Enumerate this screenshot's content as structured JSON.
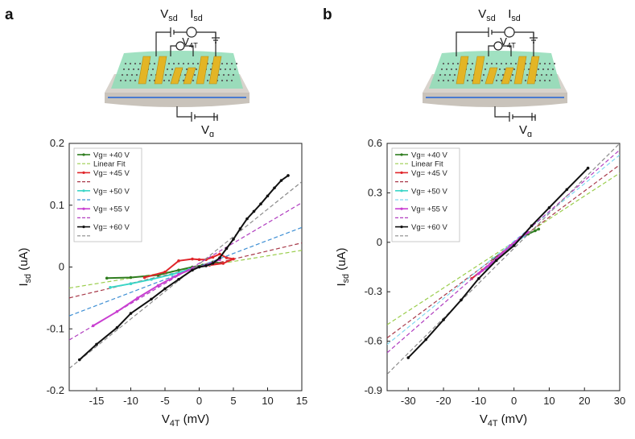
{
  "panels": [
    {
      "letter": "a",
      "schematic": {
        "source_v": "V",
        "source_v_sub": "sd",
        "source_i": "I",
        "source_i_sub": "sd",
        "probe_v": "V",
        "probe_v_sub": "4T",
        "gate_v": "V",
        "gate_v_sub": "g"
      }
    },
    {
      "letter": "b",
      "schematic": {
        "source_v": "V",
        "source_v_sub": "sd",
        "source_i": "I",
        "source_i_sub": "sd",
        "probe_v": "V",
        "probe_v_sub": "4T",
        "gate_v": "V",
        "gate_v_sub": "g"
      }
    }
  ],
  "chart_data": [
    {
      "type": "line",
      "xlabel_main": "V",
      "xlabel_sub": "4T",
      "xlabel_unit": " (mV)",
      "ylabel_main": "I",
      "ylabel_sub": "sd",
      "ylabel_unit": " (uA)",
      "xlim": [
        -19,
        15
      ],
      "ylim": [
        -0.2,
        0.2
      ],
      "xticks": [
        -15,
        -10,
        -5,
        0,
        5,
        10,
        15
      ],
      "yticks": [
        -0.2,
        -0.1,
        0,
        0.1,
        0.2
      ],
      "ytick_labels": [
        "-0.2",
        "-0.1",
        "0",
        "0.1",
        "0.2"
      ],
      "legend": [
        "Vg= +40 V",
        "Linear Fit",
        "Vg= +45 V",
        "",
        "Vg= +50 V",
        "",
        "Vg= +55 V",
        "",
        "Vg= +60 V",
        ""
      ],
      "legend_position": "top-left",
      "series": [
        {
          "name": "Vg= +40 V",
          "color": "#2f7d1f",
          "points": [
            [
              -13.5,
              -0.018
            ],
            [
              -10,
              -0.017
            ],
            [
              -6,
              -0.013
            ],
            [
              -3,
              -0.005
            ],
            [
              -1,
              0.0
            ],
            [
              0.5,
              0.003
            ],
            [
              2,
              0.008
            ],
            [
              3.5,
              0.006
            ]
          ],
          "fit_color": "#9acd4c",
          "fit": [
            [
              -19,
              -0.034
            ],
            [
              15,
              0.027
            ]
          ]
        },
        {
          "name": "Vg= +45 V",
          "color": "#e0262b",
          "points": [
            [
              -8,
              -0.017
            ],
            [
              -5,
              -0.008
            ],
            [
              -3,
              0.01
            ],
            [
              -1,
              0.013
            ],
            [
              0,
              0.012
            ],
            [
              1,
              0.012
            ],
            [
              2,
              0.016
            ],
            [
              3,
              0.021
            ],
            [
              4,
              0.015
            ],
            [
              5,
              0.013
            ],
            [
              3.5,
              0.006
            ],
            [
              1.5,
              0.003
            ]
          ],
          "fit_color": "#a83a4a",
          "fit": [
            [
              -19,
              -0.05
            ],
            [
              15,
              0.039
            ]
          ]
        },
        {
          "name": "Vg= +50 V",
          "color": "#3ad6c7",
          "points": [
            [
              -13,
              -0.033
            ],
            [
              -10,
              -0.027
            ],
            [
              -7,
              -0.02
            ],
            [
              -4,
              -0.012
            ],
            [
              -1.5,
              -0.004
            ],
            [
              0,
              0.0
            ],
            [
              1.5,
              0.004
            ]
          ],
          "fit_color": "#3e8fd4",
          "fit": [
            [
              -19,
              -0.079
            ],
            [
              15,
              0.064
            ]
          ]
        },
        {
          "name": "Vg= +55 V",
          "color": "#c93ed1",
          "points": [
            [
              -15.5,
              -0.095
            ],
            [
              -12,
              -0.072
            ],
            [
              -9,
              -0.05
            ],
            [
              -6,
              -0.03
            ],
            [
              -3,
              -0.012
            ],
            [
              -1,
              -0.003
            ],
            [
              1,
              0.003
            ],
            [
              3,
              0.012
            ]
          ],
          "fit_color": "#b13fc0",
          "fit": [
            [
              -19,
              -0.118
            ],
            [
              15,
              0.104
            ]
          ]
        },
        {
          "name": "Vg= +60 V",
          "color": "#111111",
          "points": [
            [
              -17.5,
              -0.15
            ],
            [
              -15,
              -0.125
            ],
            [
              -12,
              -0.098
            ],
            [
              -10,
              -0.075
            ],
            [
              -7,
              -0.052
            ],
            [
              -5,
              -0.035
            ],
            [
              -3,
              -0.02
            ],
            [
              -1,
              -0.005
            ],
            [
              0,
              0.0
            ],
            [
              1,
              0.002
            ],
            [
              2,
              0.006
            ],
            [
              3,
              0.015
            ],
            [
              4,
              0.03
            ],
            [
              5,
              0.045
            ],
            [
              6,
              0.062
            ],
            [
              7,
              0.078
            ],
            [
              8,
              0.09
            ],
            [
              9,
              0.102
            ],
            [
              10,
              0.115
            ],
            [
              11,
              0.128
            ],
            [
              12,
              0.14
            ],
            [
              13,
              0.148
            ]
          ],
          "fit_color": "#8a8a8a",
          "fit": [
            [
              -19,
              -0.164
            ],
            [
              15,
              0.138
            ]
          ]
        }
      ]
    },
    {
      "type": "line",
      "xlabel_main": "V",
      "xlabel_sub": "4T",
      "xlabel_unit": " (mV)",
      "ylabel_main": "I",
      "ylabel_sub": "sd",
      "ylabel_unit": " (uA)",
      "xlim": [
        -36,
        30
      ],
      "ylim": [
        -0.9,
        0.6
      ],
      "xticks": [
        -30,
        -20,
        -10,
        0,
        10,
        20,
        30
      ],
      "yticks": [
        -0.9,
        -0.6,
        -0.3,
        0,
        0.3,
        0.6
      ],
      "ytick_labels": [
        "-0.9",
        "-0.6",
        "-0.3",
        "0",
        "0.3",
        "0.6"
      ],
      "legend": [
        "Vg= +40 V",
        "Linear Fit",
        "Vg= +45 V",
        "",
        "Vg= +50 V",
        "",
        "Vg= +55 V",
        "",
        "Vg= +60 V",
        ""
      ],
      "legend_position": "top-left",
      "series": [
        {
          "name": "Vg= +40 V",
          "color": "#2f7d1f",
          "points": [
            [
              -6,
              -0.1
            ],
            [
              -3,
              -0.06
            ],
            [
              0,
              -0.01
            ],
            [
              2,
              0.03
            ],
            [
              4,
              0.05
            ],
            [
              6,
              0.07
            ],
            [
              7,
              0.08
            ]
          ],
          "fit_color": "#9acd4c",
          "fit": [
            [
              -36,
              -0.5
            ],
            [
              30,
              0.42
            ]
          ]
        },
        {
          "name": "Vg= +45 V",
          "color": "#e0262b",
          "points": [
            [
              -12,
              -0.22
            ],
            [
              -9,
              -0.17
            ],
            [
              -6,
              -0.12
            ],
            [
              -3,
              -0.06
            ],
            [
              0,
              -0.01
            ],
            [
              2,
              0.03
            ]
          ],
          "fit_color": "#a83a4a",
          "fit": [
            [
              -36,
              -0.58
            ],
            [
              30,
              0.47
            ]
          ]
        },
        {
          "name": "Vg= +50 V",
          "color": "#3ad6c7",
          "points": [
            [
              -8,
              -0.16
            ],
            [
              -5,
              -0.1
            ],
            [
              -2,
              -0.04
            ],
            [
              0,
              -0.01
            ],
            [
              3,
              0.04
            ]
          ],
          "fit_color": "#7fd8f0",
          "fit": [
            [
              -36,
              -0.62
            ],
            [
              30,
              0.53
            ]
          ]
        },
        {
          "name": "Vg= +55 V",
          "color": "#c93ed1",
          "points": [
            [
              -10,
              -0.19
            ],
            [
              -7,
              -0.14
            ],
            [
              -4,
              -0.08
            ],
            [
              -1,
              -0.02
            ],
            [
              2,
              0.03
            ],
            [
              4,
              0.06
            ]
          ],
          "fit_color": "#b13fc0",
          "fit": [
            [
              -36,
              -0.67
            ],
            [
              30,
              0.56
            ]
          ]
        },
        {
          "name": "Vg= +60 V",
          "color": "#111111",
          "points": [
            [
              -30,
              -0.7
            ],
            [
              -25,
              -0.59
            ],
            [
              -20,
              -0.47
            ],
            [
              -15,
              -0.35
            ],
            [
              -10,
              -0.22
            ],
            [
              -5,
              -0.11
            ],
            [
              0,
              -0.02
            ],
            [
              5,
              0.1
            ],
            [
              10,
              0.21
            ],
            [
              15,
              0.32
            ],
            [
              21,
              0.45
            ]
          ],
          "fit_color": "#8a8a8a",
          "fit": [
            [
              -36,
              -0.8
            ],
            [
              30,
              0.6
            ]
          ]
        }
      ]
    }
  ]
}
